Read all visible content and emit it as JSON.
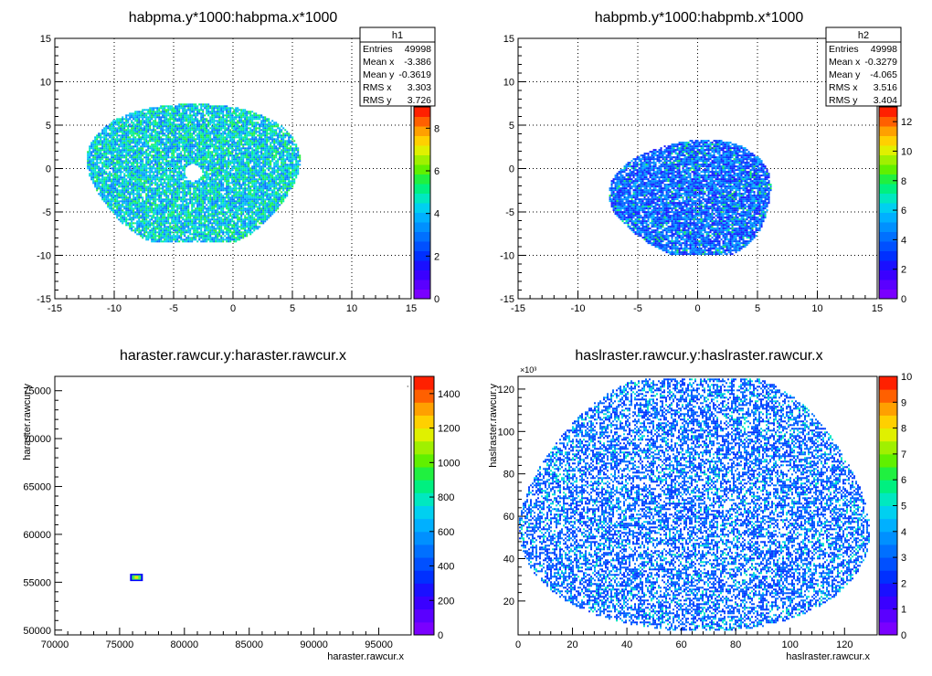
{
  "palette": [
    "#7a00ff",
    "#5a00ff",
    "#3a00ff",
    "#1a10ff",
    "#0030ff",
    "#0050ff",
    "#0070ff",
    "#0090ff",
    "#00b0ff",
    "#00d0f0",
    "#00e8c0",
    "#00f080",
    "#20f040",
    "#60f000",
    "#a0f000",
    "#e0f000",
    "#ffd000",
    "#ffa000",
    "#ff6000",
    "#ff2000"
  ],
  "chart_data": [
    {
      "type": "heatmap",
      "title": "habpma.y*1000:habpma.x*1000",
      "xlabel": "",
      "ylabel": "",
      "xlim": [
        -15,
        15
      ],
      "ylim": [
        -15,
        15
      ],
      "xticks": [
        "-15",
        "-10",
        "-5",
        "0",
        "5",
        "10",
        "15"
      ],
      "yticks": [
        "15",
        "10",
        "5",
        "0",
        "-5",
        "-10",
        "-15"
      ],
      "grid": true,
      "zlim": [
        0,
        9
      ],
      "zticks": [
        "8",
        "6",
        "4",
        "2",
        "0"
      ],
      "blob": {
        "cx": -3.4,
        "cy": -0.4,
        "rx": 9.2,
        "ry": 8.1,
        "hole_r": 0.7
      },
      "stats": {
        "name": "h1",
        "rows": [
          {
            "label": "Entries",
            "value": "49998"
          },
          {
            "label": "Mean x",
            "value": "-3.386"
          },
          {
            "label": "Mean y",
            "value": "-0.3619"
          },
          {
            "label": "RMS x",
            "value": "3.303"
          },
          {
            "label": "RMS y",
            "value": "3.726"
          }
        ]
      }
    },
    {
      "type": "heatmap",
      "title": "habpmb.y*1000:habpmb.x*1000",
      "xlabel": "",
      "ylabel": "",
      "xlim": [
        -15,
        15
      ],
      "ylim": [
        -15,
        15
      ],
      "xticks": [
        "-15",
        "-10",
        "-5",
        "0",
        "5",
        "10",
        "15"
      ],
      "yticks": [
        "15",
        "10",
        "5",
        "0",
        "-5",
        "-10",
        "-15"
      ],
      "grid": true,
      "zlim": [
        0,
        13
      ],
      "zticks": [
        "12",
        "10",
        "8",
        "6",
        "4",
        "2",
        "0"
      ],
      "blob": {
        "cx": -0.4,
        "cy": -3.3,
        "rx": 7.0,
        "ry": 6.6,
        "hole_r": 0
      },
      "stats": {
        "name": "h2",
        "rows": [
          {
            "label": "Entries",
            "value": "49998"
          },
          {
            "label": "Mean x",
            "value": "-0.3279"
          },
          {
            "label": "Mean y",
            "value": "-4.065"
          },
          {
            "label": "RMS x",
            "value": "3.516"
          },
          {
            "label": "RMS y",
            "value": "3.404"
          }
        ]
      }
    },
    {
      "type": "heatmap",
      "title": "haraster.rawcur.y:haraster.rawcur.x",
      "xlabel": "haraster.rawcur.x",
      "ylabel": "haraster.rawcur.y",
      "xlim": [
        70000,
        97500
      ],
      "ylim": [
        49500,
        76500
      ],
      "xticks": [
        "70000",
        "75000",
        "80000",
        "85000",
        "90000",
        "95000"
      ],
      "yticks": [
        "75000",
        "70000",
        "65000",
        "60000",
        "55000",
        "50000"
      ],
      "grid": false,
      "zlim": [
        0,
        1500
      ],
      "zticks": [
        "1400",
        "1200",
        "1000",
        "800",
        "600",
        "400",
        "200",
        "0"
      ],
      "blob": {
        "cx": 76300,
        "cy": 55500,
        "rx": 450,
        "ry": 300,
        "hole_r": 0
      }
    },
    {
      "type": "heatmap",
      "title": "haslraster.rawcur.y:haslraster.rawcur.x",
      "xlabel": "haslraster.rawcur.x",
      "ylabel": "haslraster.rawcur.y",
      "yexp": "×10³",
      "xlim": [
        0,
        132
      ],
      "ylim": [
        4,
        126
      ],
      "xticks": [
        "0",
        "20",
        "40",
        "60",
        "80",
        "100",
        "120"
      ],
      "yticks": [
        "120",
        "100",
        "80",
        "60",
        "40",
        "20"
      ],
      "grid": false,
      "zlim": [
        0,
        10
      ],
      "zticks": [
        "10",
        "9",
        "8",
        "7",
        "6",
        "5",
        "4",
        "3",
        "2",
        "1",
        "0"
      ],
      "blob": {
        "cx": 65,
        "cy": 65,
        "rx": 66,
        "ry": 60,
        "hole_r": 0
      }
    }
  ]
}
